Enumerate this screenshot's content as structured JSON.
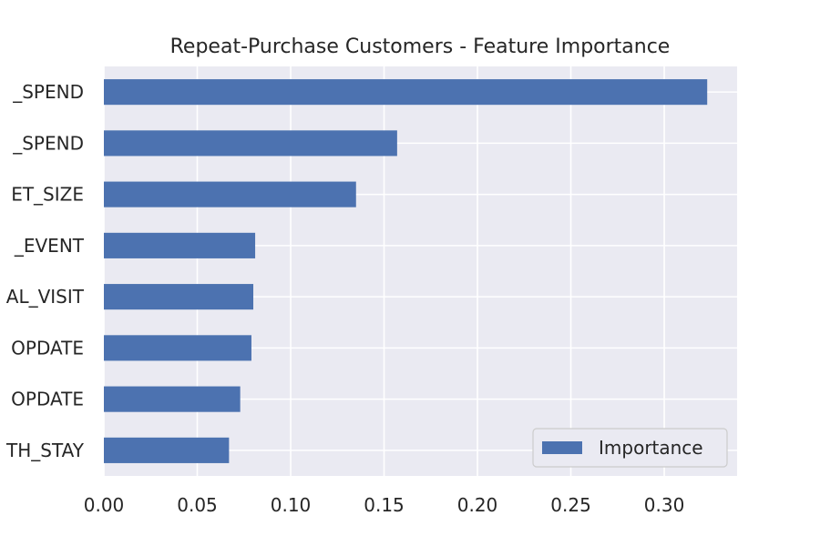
{
  "chart_data": {
    "type": "bar",
    "orientation": "horizontal",
    "title": "Repeat-Purchase Customers - Feature Importance",
    "xlabel": "",
    "ylabel": "",
    "categories": [
      "_SPEND",
      "_SPEND",
      "ET_SIZE",
      "_EVENT",
      "AL_VISIT",
      "OPDATE",
      "OPDATE",
      "TH_STAY"
    ],
    "series": [
      {
        "name": "Importance",
        "values": [
          0.323,
          0.157,
          0.135,
          0.081,
          0.08,
          0.079,
          0.073,
          0.067
        ]
      }
    ],
    "xlim": [
      0,
      0.339
    ],
    "xticks": [
      0.0,
      0.05,
      0.1,
      0.15,
      0.2,
      0.25,
      0.3
    ],
    "xtick_labels": [
      "0.00",
      "0.05",
      "0.10",
      "0.15",
      "0.20",
      "0.25",
      "0.30"
    ],
    "grid": true,
    "legend_position": "lower-right",
    "colors": {
      "bar": "#4c72b0",
      "background": "#eaeaf2",
      "grid": "#ffffff",
      "text": "#262626"
    }
  }
}
